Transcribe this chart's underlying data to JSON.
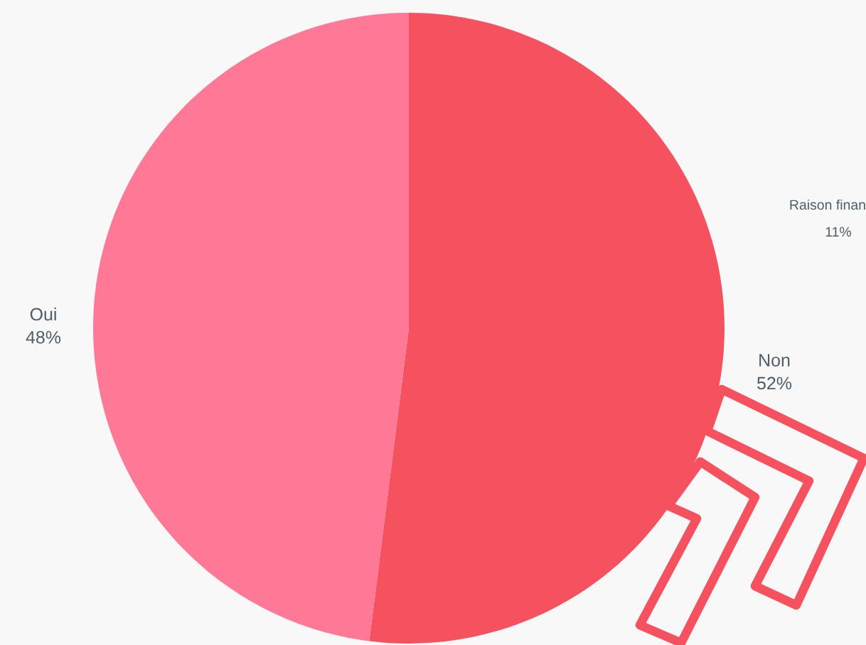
{
  "chart_data": {
    "type": "pie",
    "categories": [
      "Non",
      "Oui"
    ],
    "values": [
      52,
      48
    ],
    "colors": [
      "#f5515f",
      "#ff7896"
    ],
    "value_labels": [
      "52%",
      "48%"
    ],
    "annotations": [
      "Raison finan",
      "11%"
    ],
    "legend": false
  }
}
